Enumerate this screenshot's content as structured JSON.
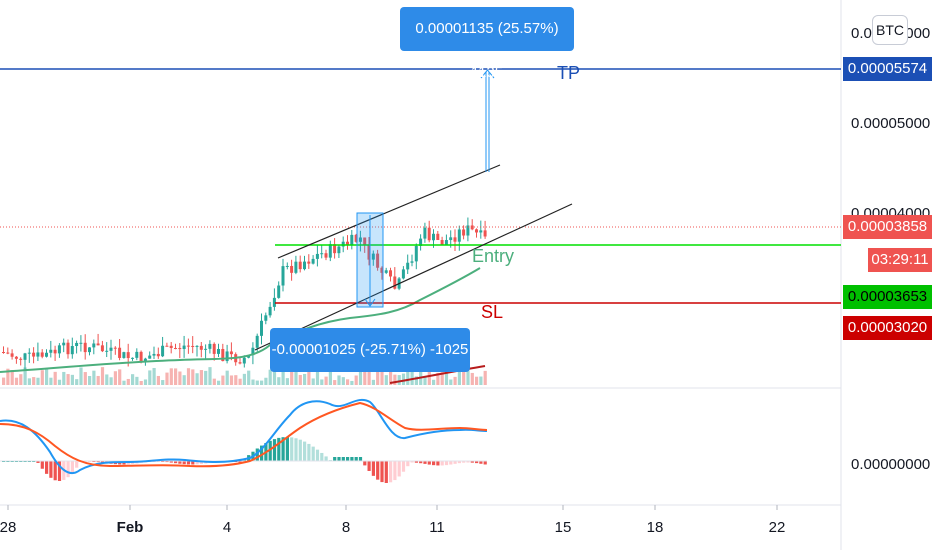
{
  "currency_button": "BTC",
  "price_axis": {
    "top_partial": "0.00006000",
    "p5000": "0.00005000",
    "p4000_partial": "0.00004000",
    "zero": "0.00000000"
  },
  "date_axis": [
    "28",
    "Feb",
    "4",
    "8",
    "11",
    "15",
    "18",
    "22"
  ],
  "price_tags": {
    "tp": {
      "text": "0.00005574",
      "color": "#1b4fb5"
    },
    "last": {
      "text": "0.00003858",
      "color": "#ef5350"
    },
    "countdown": {
      "text": "03:29:11",
      "color": "#ef5350"
    },
    "entry": {
      "text": "0.00003653",
      "color": "#00c000"
    },
    "sl": {
      "text": "0.00003020",
      "color": "#cc0000"
    }
  },
  "chart_labels": {
    "tp": "TP",
    "entry": "Entry",
    "sl": "SL"
  },
  "callouts": {
    "up": "0.00001135 (25.57%) 1135",
    "down": "-0.00001025 (-25.71%) -1025"
  },
  "colors": {
    "up_candle": "#26a69a",
    "down_candle": "#ef5350",
    "macd": "#2196f3",
    "signal": "#ff5722",
    "ma": "#4caf7d",
    "channel": "#222222"
  }
}
